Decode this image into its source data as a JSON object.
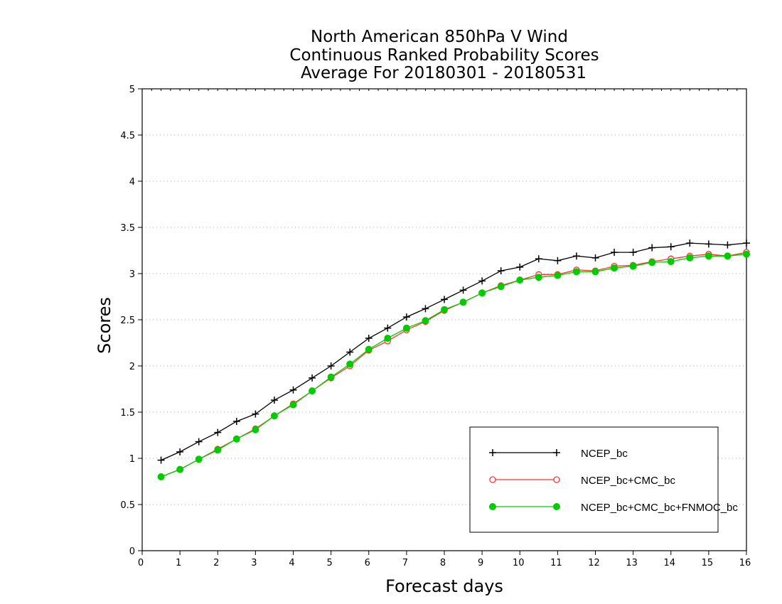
{
  "chart_data": {
    "type": "line",
    "title": [
      "North American 850hPa V Wind",
      "Continuous Ranked Probability Scores",
      "Average For 20180301 - 20180531"
    ],
    "xlabel": "Forecast days",
    "ylabel": "Scores",
    "xlim": [
      0,
      16
    ],
    "ylim": [
      0,
      5
    ],
    "xticks": [
      "0",
      "1",
      "2",
      "3",
      "4",
      "5",
      "6",
      "7",
      "8",
      "9",
      "10",
      "11",
      "12",
      "13",
      "14",
      "15",
      "16"
    ],
    "yticks": [
      "0",
      "0.5",
      "1",
      "1.5",
      "2",
      "2.5",
      "3",
      "3.5",
      "4",
      "4.5",
      "5"
    ],
    "grid": true,
    "legend_position": "bottom-right",
    "x": [
      0.5,
      1,
      1.5,
      2,
      2.5,
      3,
      3.5,
      4,
      4.5,
      5,
      5.5,
      6,
      6.5,
      7,
      7.5,
      8,
      8.5,
      9,
      9.5,
      10,
      10.5,
      11,
      11.5,
      12,
      12.5,
      13,
      13.5,
      14,
      14.5,
      15,
      15.5,
      16
    ],
    "series": [
      {
        "name": "NCEP_bc",
        "color": "#000000",
        "marker": "plus",
        "values": [
          0.98,
          1.07,
          1.18,
          1.28,
          1.4,
          1.48,
          1.63,
          1.74,
          1.87,
          2.0,
          2.15,
          2.3,
          2.41,
          2.53,
          2.62,
          2.72,
          2.82,
          2.92,
          3.03,
          3.07,
          3.16,
          3.14,
          3.19,
          3.17,
          3.23,
          3.23,
          3.28,
          3.29,
          3.33,
          3.32,
          3.31,
          3.33
        ]
      },
      {
        "name": "NCEP_bc+CMC_bc",
        "color": "#ff3333",
        "marker": "open-circle",
        "values": [
          0.8,
          0.88,
          0.99,
          1.1,
          1.21,
          1.32,
          1.46,
          1.59,
          1.73,
          1.87,
          2.0,
          2.17,
          2.27,
          2.39,
          2.48,
          2.6,
          2.69,
          2.79,
          2.87,
          2.93,
          2.99,
          2.99,
          3.04,
          3.03,
          3.08,
          3.09,
          3.13,
          3.16,
          3.19,
          3.21,
          3.19,
          3.23
        ]
      },
      {
        "name": "NCEP_bc+CMC_bc+FNMOC_bc",
        "color": "#00cc00",
        "marker": "filled-circle",
        "values": [
          0.8,
          0.88,
          0.99,
          1.09,
          1.21,
          1.31,
          1.46,
          1.58,
          1.73,
          1.88,
          2.02,
          2.18,
          2.3,
          2.41,
          2.49,
          2.61,
          2.69,
          2.79,
          2.86,
          2.93,
          2.96,
          2.98,
          3.02,
          3.02,
          3.06,
          3.08,
          3.12,
          3.13,
          3.17,
          3.19,
          3.19,
          3.21
        ]
      }
    ]
  }
}
